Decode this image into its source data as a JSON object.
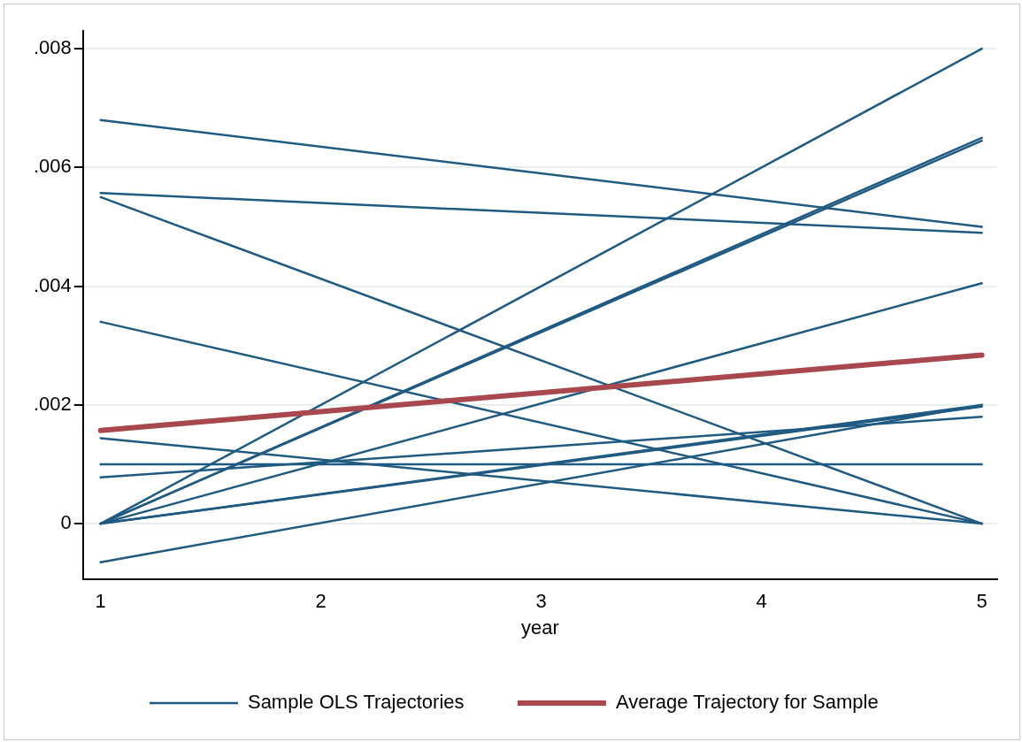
{
  "chart_data": {
    "type": "line",
    "xlabel": "year",
    "x": [
      1,
      5
    ],
    "series": [
      {
        "name": "Sample OLS Trajectories",
        "color": "#1f5a82",
        "values": [
          0.0068,
          0.005
        ]
      },
      {
        "color": "#1f5a82",
        "values": [
          0.00557,
          0.0049
        ]
      },
      {
        "color": "#1f5a82",
        "values": [
          0.0055,
          0
        ]
      },
      {
        "color": "#1f5a82",
        "values": [
          0.0034,
          0
        ]
      },
      {
        "color": "#1f5a82",
        "values": [
          0.00144,
          0
        ]
      },
      {
        "color": "#1f5a82",
        "values": [
          0.001,
          0.001
        ]
      },
      {
        "color": "#1f5a82",
        "values": [
          0.00078,
          0.0018
        ]
      },
      {
        "color": "#1f5a82",
        "values": [
          -0.00065,
          0.002
        ]
      },
      {
        "color": "#1f5a82",
        "values": [
          0,
          0.008
        ]
      },
      {
        "color": "#1f5a82",
        "values": [
          0,
          0.0065
        ]
      },
      {
        "color": "#1f5a82",
        "values": [
          0,
          0.00645
        ]
      },
      {
        "color": "#1f5a82",
        "values": [
          0,
          0.00405
        ]
      },
      {
        "color": "#1f5a82",
        "values": [
          0,
          0.002
        ]
      },
      {
        "color": "#1f5a82",
        "values": [
          0,
          0.00197
        ]
      },
      {
        "name": "Average Trajectory for Sample",
        "color": "#a8474d",
        "values": [
          0.00157,
          0.00284
        ]
      }
    ],
    "xlim": [
      0.92,
      5.07
    ],
    "xticks": [
      1,
      2,
      3,
      4,
      5
    ],
    "ylim": [
      -0.00094,
      0.0083
    ],
    "yticks": [
      {
        "value": 0,
        "label": "0"
      },
      {
        "value": 0.002,
        "label": ".002"
      },
      {
        "value": 0.004,
        "label": ".004"
      },
      {
        "value": 0.006,
        "label": ".006"
      },
      {
        "value": 0.008,
        "label": ".008"
      }
    ],
    "grid": "y",
    "legend": "bottom",
    "marker": "none",
    "line_style": "solid"
  }
}
